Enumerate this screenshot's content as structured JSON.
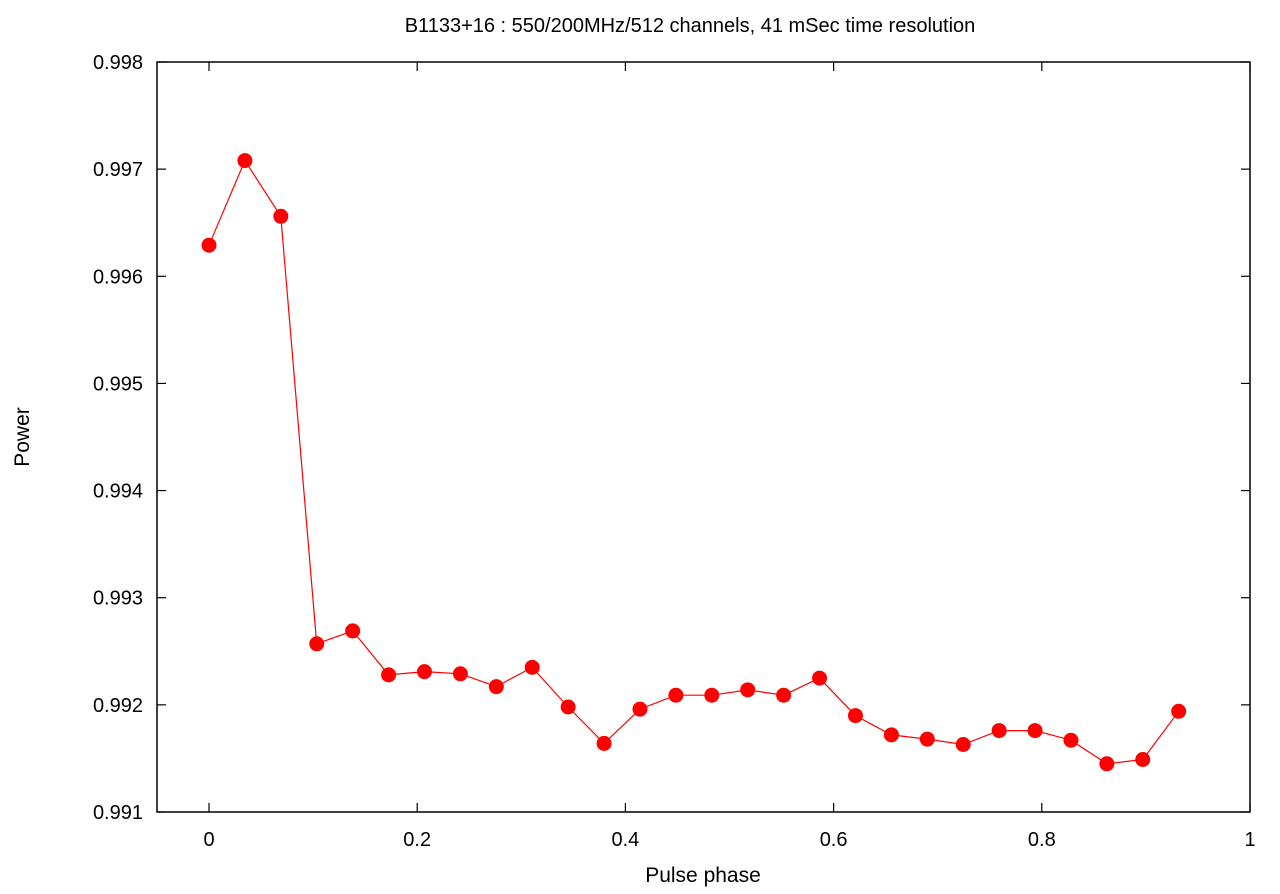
{
  "chart_data": {
    "type": "line",
    "title": "B1133+16 : 550/200MHz/512 channels, 41 mSec time resolution",
    "xlabel": "Pulse phase",
    "ylabel": "Power",
    "xlim": [
      0,
      1
    ],
    "ylim": [
      0.991,
      0.998
    ],
    "xticks": [
      0,
      0.2,
      0.4,
      0.6,
      0.8,
      1
    ],
    "xtick_labels": [
      "0",
      "0.2",
      "0.4",
      "0.6",
      "0.8",
      "1"
    ],
    "yticks": [
      0.991,
      0.992,
      0.993,
      0.994,
      0.995,
      0.996,
      0.997,
      0.998
    ],
    "ytick_labels": [
      "0.991",
      "0.992",
      "0.993",
      "0.994",
      "0.995",
      "0.996",
      "0.997",
      "0.998"
    ],
    "grid": false,
    "legend": "none",
    "series": [
      {
        "color": "#ff0000",
        "marker": "circle",
        "x": [
          0.0,
          0.0345,
          0.069,
          0.1035,
          0.138,
          0.1725,
          0.207,
          0.2415,
          0.276,
          0.3105,
          0.345,
          0.3795,
          0.414,
          0.4485,
          0.483,
          0.5175,
          0.552,
          0.5865,
          0.621,
          0.6555,
          0.69,
          0.7245,
          0.759,
          0.7935,
          0.828,
          0.8625,
          0.897,
          0.9315
        ],
        "y": [
          0.99629,
          0.99708,
          0.99656,
          0.99257,
          0.99269,
          0.99228,
          0.99231,
          0.99229,
          0.99217,
          0.99235,
          0.99198,
          0.99164,
          0.99196,
          0.99209,
          0.99209,
          0.99214,
          0.99209,
          0.99225,
          0.9919,
          0.99172,
          0.99168,
          0.99163,
          0.99176,
          0.99176,
          0.99167,
          0.99145,
          0.99149,
          0.99194
        ]
      }
    ]
  }
}
